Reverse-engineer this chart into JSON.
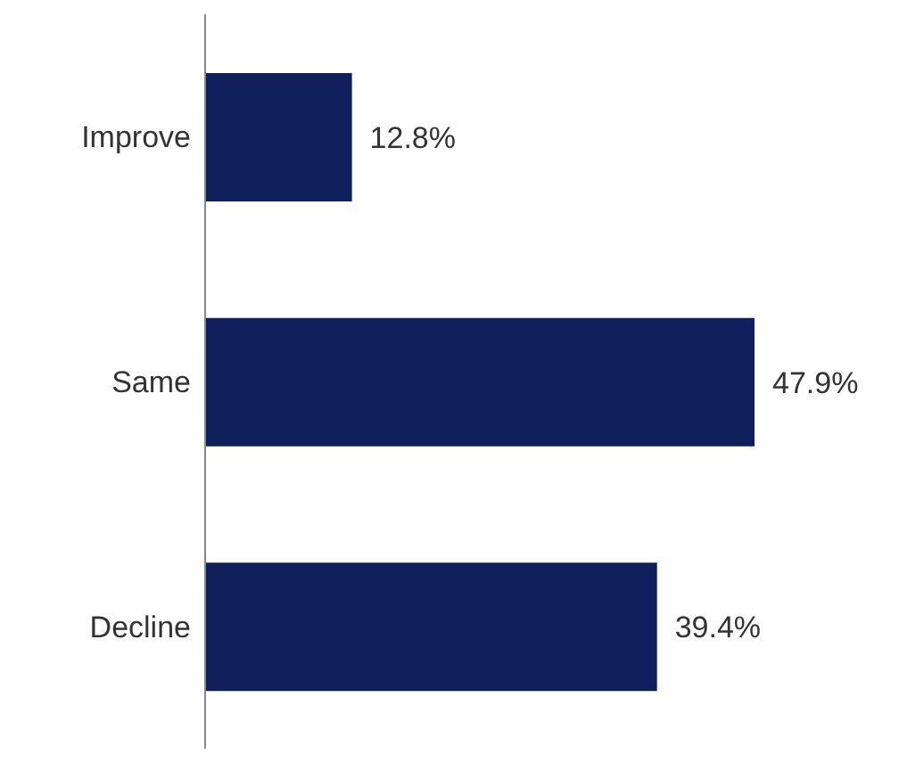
{
  "chart_data": {
    "type": "bar",
    "orientation": "horizontal",
    "categories": [
      "Improve",
      "Same",
      "Decline"
    ],
    "values": [
      12.8,
      47.9,
      39.4
    ],
    "value_labels": [
      "12.8%",
      "47.9%",
      "39.4%"
    ],
    "color": "#0e1f5b",
    "grid": false
  }
}
